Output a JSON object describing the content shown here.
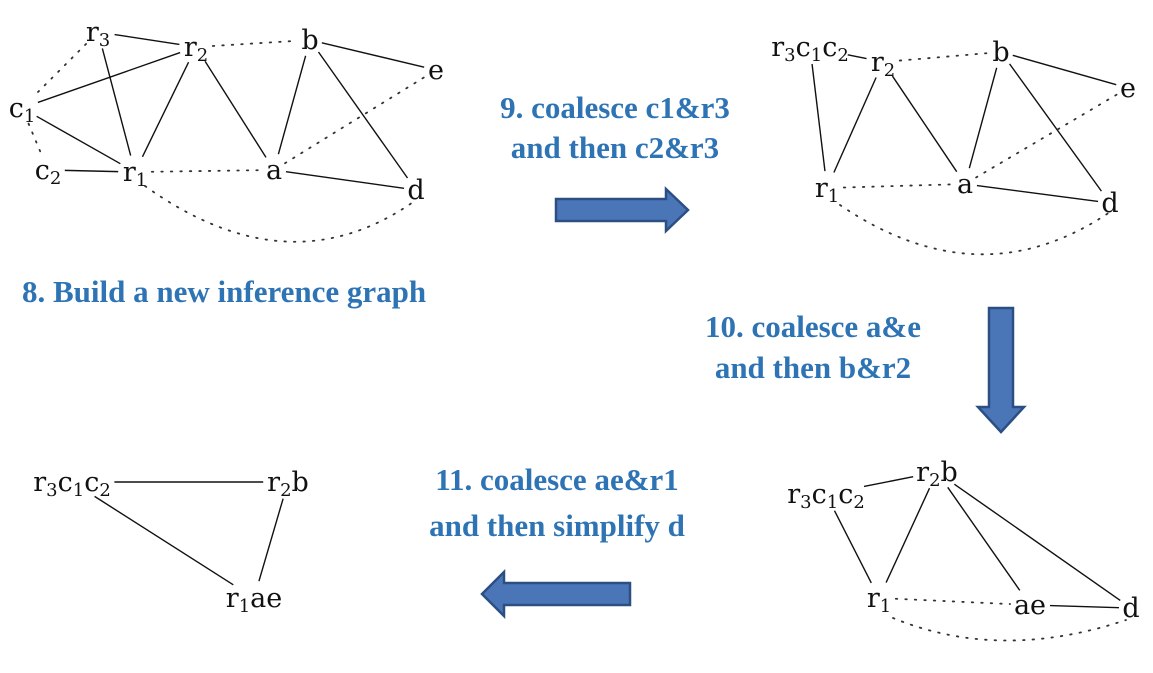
{
  "steps": {
    "step8": "8. Build a new inference graph",
    "step9_line1": "9. coalesce c1&r3",
    "step9_line2": "and then c2&r3",
    "step10_line1": "10. coalesce a&e",
    "step10_line2": "and then b&r2",
    "step11_line1": "11. coalesce ae&r1",
    "step11_line2": "and then simplify d"
  },
  "graphs": [
    {
      "id": "graph-1",
      "nodes": [
        {
          "id": "r3",
          "parts": [
            [
              "r",
              ""
            ],
            [
              "3",
              "sub"
            ]
          ]
        },
        {
          "id": "r2",
          "parts": [
            [
              "r",
              ""
            ],
            [
              "2",
              "sub"
            ]
          ]
        },
        {
          "id": "b",
          "parts": [
            [
              "b",
              ""
            ]
          ]
        },
        {
          "id": "e",
          "parts": [
            [
              "e",
              ""
            ]
          ]
        },
        {
          "id": "c1",
          "parts": [
            [
              "c",
              ""
            ],
            [
              "1",
              "sub"
            ]
          ]
        },
        {
          "id": "c2",
          "parts": [
            [
              "c",
              ""
            ],
            [
              "2",
              "sub"
            ]
          ]
        },
        {
          "id": "r1",
          "parts": [
            [
              "r",
              ""
            ],
            [
              "1",
              "sub"
            ]
          ]
        },
        {
          "id": "a",
          "parts": [
            [
              "a",
              ""
            ]
          ]
        },
        {
          "id": "d",
          "parts": [
            [
              "d",
              ""
            ]
          ]
        }
      ],
      "edges": [
        {
          "from": "r3",
          "to": "r2",
          "style": "solid"
        },
        {
          "from": "r3",
          "to": "r1",
          "style": "solid"
        },
        {
          "from": "r3",
          "to": "c1",
          "style": "dotted"
        },
        {
          "from": "r2",
          "to": "c1",
          "style": "solid"
        },
        {
          "from": "r2",
          "to": "r1",
          "style": "solid"
        },
        {
          "from": "r2",
          "to": "a",
          "style": "solid"
        },
        {
          "from": "r2",
          "to": "b",
          "style": "dotted"
        },
        {
          "from": "c1",
          "to": "r1",
          "style": "solid"
        },
        {
          "from": "c1",
          "to": "c2",
          "style": "dotted"
        },
        {
          "from": "c2",
          "to": "r1",
          "style": "solid"
        },
        {
          "from": "r1",
          "to": "a",
          "style": "dotted"
        },
        {
          "from": "b",
          "to": "e",
          "style": "solid"
        },
        {
          "from": "b",
          "to": "a",
          "style": "solid"
        },
        {
          "from": "b",
          "to": "d",
          "style": "solid"
        },
        {
          "from": "a",
          "to": "d",
          "style": "solid"
        },
        {
          "from": "a",
          "to": "e",
          "style": "dotted"
        },
        {
          "from": "r1",
          "to": "d",
          "style": "dotted-curve"
        }
      ]
    },
    {
      "id": "graph-2",
      "nodes": [
        {
          "id": "r3c1c2",
          "parts": [
            [
              "r",
              ""
            ],
            [
              "3",
              "sub"
            ],
            [
              "c",
              ""
            ],
            [
              "1",
              "sub"
            ],
            [
              "c",
              ""
            ],
            [
              "2",
              "sub"
            ]
          ]
        },
        {
          "id": "r2",
          "parts": [
            [
              "r",
              ""
            ],
            [
              "2",
              "sub"
            ]
          ]
        },
        {
          "id": "b",
          "parts": [
            [
              "b",
              ""
            ]
          ]
        },
        {
          "id": "e",
          "parts": [
            [
              "e",
              ""
            ]
          ]
        },
        {
          "id": "r1",
          "parts": [
            [
              "r",
              ""
            ],
            [
              "1",
              "sub"
            ]
          ]
        },
        {
          "id": "a",
          "parts": [
            [
              "a",
              ""
            ]
          ]
        },
        {
          "id": "d",
          "parts": [
            [
              "d",
              ""
            ]
          ]
        }
      ],
      "edges": [
        {
          "from": "r3c1c2",
          "to": "r2",
          "style": "solid"
        },
        {
          "from": "r3c1c2",
          "to": "r1",
          "style": "solid"
        },
        {
          "from": "r2",
          "to": "r1",
          "style": "solid"
        },
        {
          "from": "r2",
          "to": "a",
          "style": "solid"
        },
        {
          "from": "r2",
          "to": "b",
          "style": "dotted"
        },
        {
          "from": "b",
          "to": "e",
          "style": "solid"
        },
        {
          "from": "b",
          "to": "a",
          "style": "solid"
        },
        {
          "from": "b",
          "to": "d",
          "style": "solid"
        },
        {
          "from": "a",
          "to": "d",
          "style": "solid"
        },
        {
          "from": "a",
          "to": "e",
          "style": "dotted"
        },
        {
          "from": "r1",
          "to": "a",
          "style": "dotted"
        },
        {
          "from": "r1",
          "to": "d",
          "style": "dotted-curve"
        }
      ]
    },
    {
      "id": "graph-3",
      "nodes": [
        {
          "id": "r3c1c2",
          "parts": [
            [
              "r",
              ""
            ],
            [
              "3",
              "sub"
            ],
            [
              "c",
              ""
            ],
            [
              "1",
              "sub"
            ],
            [
              "c",
              ""
            ],
            [
              "2",
              "sub"
            ]
          ]
        },
        {
          "id": "r2b",
          "parts": [
            [
              "r",
              ""
            ],
            [
              "2",
              "sub"
            ],
            [
              "b",
              ""
            ]
          ]
        },
        {
          "id": "r1",
          "parts": [
            [
              "r",
              ""
            ],
            [
              "1",
              "sub"
            ]
          ]
        },
        {
          "id": "ae",
          "parts": [
            [
              "ae",
              ""
            ]
          ]
        },
        {
          "id": "d",
          "parts": [
            [
              "d",
              ""
            ]
          ]
        }
      ],
      "edges": [
        {
          "from": "r3c1c2",
          "to": "r2b",
          "style": "solid"
        },
        {
          "from": "r3c1c2",
          "to": "r1",
          "style": "solid"
        },
        {
          "from": "r2b",
          "to": "r1",
          "style": "solid"
        },
        {
          "from": "r2b",
          "to": "ae",
          "style": "solid"
        },
        {
          "from": "r2b",
          "to": "d",
          "style": "solid"
        },
        {
          "from": "ae",
          "to": "d",
          "style": "solid"
        },
        {
          "from": "r1",
          "to": "ae",
          "style": "dotted"
        },
        {
          "from": "r1",
          "to": "d",
          "style": "dotted-curve"
        }
      ]
    },
    {
      "id": "graph-4",
      "nodes": [
        {
          "id": "r3c1c2",
          "parts": [
            [
              "r",
              ""
            ],
            [
              "3",
              "sub"
            ],
            [
              "c",
              ""
            ],
            [
              "1",
              "sub"
            ],
            [
              "c",
              ""
            ],
            [
              "2",
              "sub"
            ]
          ]
        },
        {
          "id": "r2b",
          "parts": [
            [
              "r",
              ""
            ],
            [
              "2",
              "sub"
            ],
            [
              "b",
              ""
            ]
          ]
        },
        {
          "id": "r1ae",
          "parts": [
            [
              "r",
              ""
            ],
            [
              "1",
              "sub"
            ],
            [
              "ae",
              ""
            ]
          ]
        }
      ],
      "edges": [
        {
          "from": "r3c1c2",
          "to": "r2b",
          "style": "solid"
        },
        {
          "from": "r3c1c2",
          "to": "r1ae",
          "style": "solid"
        },
        {
          "from": "r2b",
          "to": "r1ae",
          "style": "solid"
        }
      ]
    }
  ],
  "colors": {
    "step_text": "#2E74B5",
    "arrow_fill": "#4A76B8",
    "arrow_stroke": "#2B4F83"
  }
}
